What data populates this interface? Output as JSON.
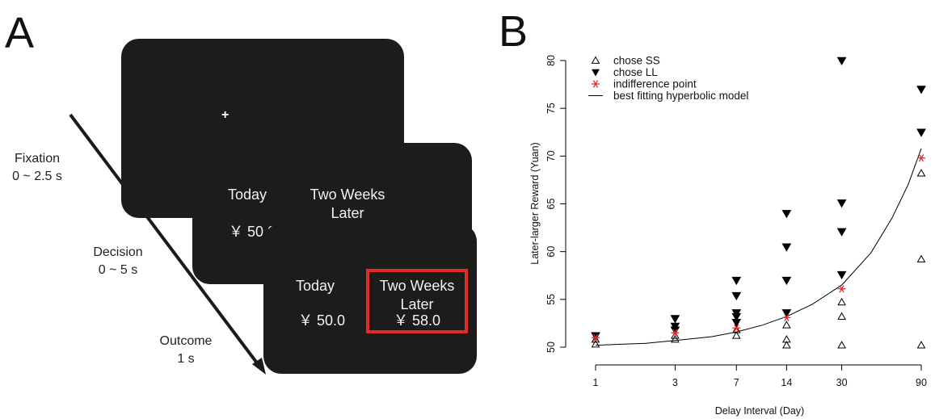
{
  "panels": {
    "left_letter": "A",
    "right_letter": "B"
  },
  "task": {
    "fixation_symbol": "+",
    "today_label": "Today",
    "later_label_line1": "Two Weeks",
    "later_label_line2": "Later",
    "today_amount": "￥ 50.0",
    "later_amount": "￥ 58.0",
    "timeline": [
      {
        "name": "Fixation",
        "duration": "0 ~ 2.5 s"
      },
      {
        "name": "Decision",
        "duration": "0 ~ 5 s"
      },
      {
        "name": "Outcome",
        "duration": "1 s"
      }
    ],
    "highlight_color": "#e02b2b",
    "screen_color": "#1c1c1b"
  },
  "chart_data": {
    "type": "scatter",
    "xlabel": "Delay Interval (Day)",
    "ylabel": "Later-larger Reward (Yuan)",
    "x_scale": "log",
    "x_ticks": [
      1,
      3,
      7,
      14,
      30,
      90
    ],
    "y_ticks": [
      50,
      55,
      60,
      65,
      70,
      75,
      80
    ],
    "ylim": [
      49.5,
      81.5
    ],
    "grid": false,
    "legend_position": "top-left",
    "legend": [
      {
        "label": "chose SS",
        "marker": "open-triangle-up"
      },
      {
        "label": "chose LL",
        "marker": "filled-triangle-down"
      },
      {
        "label": "indifference point",
        "marker": "red-asterisk"
      },
      {
        "label": "best fitting hyperbolic model",
        "marker": "line"
      }
    ],
    "series": [
      {
        "name": "chose SS",
        "points": [
          {
            "x": 1,
            "y": 50.3
          },
          {
            "x": 1,
            "y": 50.8
          },
          {
            "x": 3,
            "y": 50.8
          },
          {
            "x": 3,
            "y": 51.2
          },
          {
            "x": 7,
            "y": 51.2
          },
          {
            "x": 7,
            "y": 51.8
          },
          {
            "x": 14,
            "y": 50.2
          },
          {
            "x": 14,
            "y": 50.8
          },
          {
            "x": 14,
            "y": 52.3
          },
          {
            "x": 30,
            "y": 50.2
          },
          {
            "x": 30,
            "y": 53.2
          },
          {
            "x": 30,
            "y": 54.7
          },
          {
            "x": 90,
            "y": 50.2
          },
          {
            "x": 90,
            "y": 59.2
          },
          {
            "x": 90,
            "y": 68.2
          }
        ]
      },
      {
        "name": "chose LL",
        "points": [
          {
            "x": 1,
            "y": 51.2
          },
          {
            "x": 3,
            "y": 51.8
          },
          {
            "x": 3,
            "y": 52.2
          },
          {
            "x": 3,
            "y": 53.0
          },
          {
            "x": 7,
            "y": 52.6
          },
          {
            "x": 7,
            "y": 53.2
          },
          {
            "x": 7,
            "y": 53.6
          },
          {
            "x": 7,
            "y": 55.4
          },
          {
            "x": 7,
            "y": 57.0
          },
          {
            "x": 14,
            "y": 53.6
          },
          {
            "x": 14,
            "y": 57.0
          },
          {
            "x": 14,
            "y": 60.5
          },
          {
            "x": 14,
            "y": 64.0
          },
          {
            "x": 30,
            "y": 57.6
          },
          {
            "x": 30,
            "y": 62.1
          },
          {
            "x": 30,
            "y": 65.1
          },
          {
            "x": 30,
            "y": 80.0
          },
          {
            "x": 90,
            "y": 72.5
          },
          {
            "x": 90,
            "y": 77.0
          }
        ]
      },
      {
        "name": "indifference point",
        "points": [
          {
            "x": 1,
            "y": 51.0
          },
          {
            "x": 3,
            "y": 51.5
          },
          {
            "x": 7,
            "y": 52.0
          },
          {
            "x": 14,
            "y": 53.1
          },
          {
            "x": 30,
            "y": 56.1
          },
          {
            "x": 90,
            "y": 69.8
          }
        ]
      }
    ],
    "fit_curve": [
      {
        "x": 1,
        "y": 50.2
      },
      {
        "x": 2,
        "y": 50.4
      },
      {
        "x": 3,
        "y": 50.7
      },
      {
        "x": 5,
        "y": 51.1
      },
      {
        "x": 7,
        "y": 51.6
      },
      {
        "x": 10,
        "y": 52.3
      },
      {
        "x": 14,
        "y": 53.2
      },
      {
        "x": 20,
        "y": 54.5
      },
      {
        "x": 30,
        "y": 56.5
      },
      {
        "x": 45,
        "y": 59.9
      },
      {
        "x": 60,
        "y": 63.5
      },
      {
        "x": 75,
        "y": 67.0
      },
      {
        "x": 90,
        "y": 70.8
      }
    ],
    "colors": {
      "indifference": "#e02b2b",
      "markers": "#000000",
      "curve": "#000000"
    }
  }
}
